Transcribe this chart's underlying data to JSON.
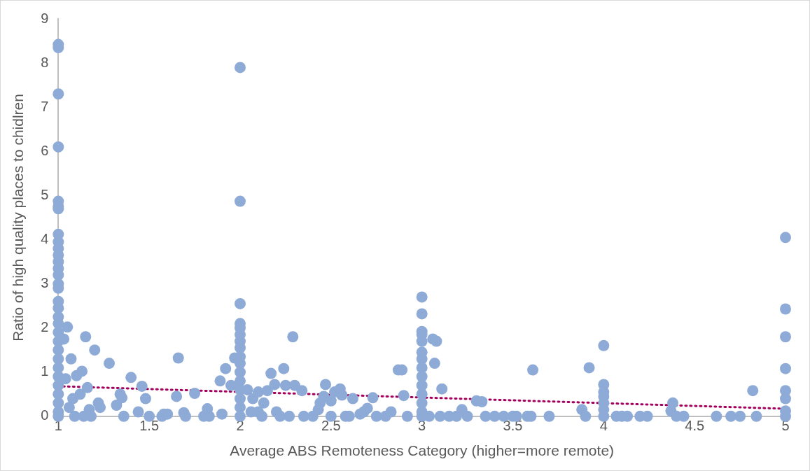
{
  "chart_data": {
    "type": "scatter",
    "xlabel": "Average ABS Remoteness Category (higher=more remote)",
    "ylabel": "Ratio of high quality places to chidlren",
    "xlim": [
      1,
      5
    ],
    "xticks": [
      1,
      1.5,
      2,
      2.5,
      3,
      3.5,
      4,
      4.5,
      5
    ],
    "ylim": [
      0,
      9
    ],
    "yticks": [
      0,
      1,
      2,
      3,
      4,
      5,
      6,
      7,
      8,
      9
    ],
    "grid": false,
    "legend": false,
    "marker": "circle",
    "series": [
      {
        "type": "scatter",
        "color": "#8eaad6",
        "x": [
          1,
          1,
          1,
          1,
          1,
          1,
          1,
          1,
          1,
          1,
          1,
          1,
          1,
          1,
          1,
          1,
          1,
          1,
          1,
          1,
          1,
          1,
          1,
          1,
          1,
          1,
          1,
          1,
          1,
          1,
          1,
          1.05,
          1.03,
          1.07,
          1.15,
          1.2,
          1.28,
          1.13,
          1.1,
          1.04,
          1.4,
          1.46,
          1.34,
          1.35,
          1.32,
          1.22,
          1.23,
          1.16,
          1.17,
          1.18,
          1.08,
          1.12,
          1.06,
          1.09,
          1.14,
          1.36,
          1.44,
          1.48,
          1.5,
          1.57,
          1.58,
          1.6,
          1.66,
          1.69,
          1.7,
          1.65,
          1.75,
          1.8,
          1.82,
          1.83,
          1.89,
          1.92,
          1.9,
          1.95,
          1.97,
          2,
          2,
          2,
          2,
          2,
          2,
          2,
          2,
          2,
          2,
          2,
          2,
          2,
          2,
          2,
          2,
          2.04,
          2.07,
          2.1,
          2.13,
          2.15,
          2.17,
          2.19,
          2.24,
          2.25,
          2.29,
          2.3,
          2.34,
          2.06,
          2.1,
          2.2,
          2.12,
          2.22,
          2.27,
          2.35,
          2.4,
          2.43,
          2.44,
          2.47,
          2.46,
          2.5,
          2.52,
          2.55,
          2.56,
          2.5,
          2.58,
          2.6,
          2.62,
          2.66,
          2.68,
          2.7,
          2.73,
          2.75,
          2.8,
          2.83,
          2.87,
          2.89,
          2.92,
          2.9,
          3,
          3,
          3,
          3,
          3,
          3,
          3,
          3,
          3,
          3,
          3,
          3,
          3,
          3,
          3.06,
          3.08,
          3.07,
          3.11,
          3.04,
          3.1,
          3.15,
          3.19,
          3.22,
          3.25,
          3.3,
          3.33,
          3.35,
          3.4,
          3.45,
          3.5,
          3.52,
          3.58,
          3.61,
          3.6,
          3.7,
          3.88,
          3.9,
          3.92,
          4,
          4,
          4,
          4,
          4,
          4,
          4,
          4.07,
          4.1,
          4.13,
          4.2,
          4.24,
          4.38,
          4.37,
          4.4,
          4.44,
          4.62,
          4.7,
          4.75,
          4.82,
          4.84,
          5,
          5,
          5,
          5,
          5,
          5,
          5,
          5
        ],
        "values": [
          8.42,
          8.35,
          7.3,
          6.1,
          4.87,
          4.75,
          4.7,
          4.12,
          3.95,
          3.8,
          3.65,
          3.5,
          3.35,
          3.2,
          3,
          2.9,
          2.6,
          2.45,
          2.25,
          2.1,
          1.9,
          1.7,
          1.5,
          1.3,
          1.1,
          0.9,
          0.7,
          0.5,
          0.3,
          0.1,
          0,
          2.02,
          1.75,
          1.3,
          1.8,
          1.5,
          1.2,
          1.02,
          0.92,
          0.85,
          0.88,
          0.68,
          0.5,
          0.42,
          0.25,
          0.3,
          0.2,
          0.65,
          0.15,
          0,
          0.4,
          0.5,
          0.2,
          0,
          0,
          0,
          0.1,
          0.4,
          0,
          0,
          0.05,
          0.05,
          1.32,
          0.08,
          0,
          0.45,
          0.52,
          0,
          0.17,
          0,
          0.8,
          1.08,
          0.05,
          0.7,
          1.32,
          7.9,
          4.87,
          2.55,
          2.1,
          2,
          1.85,
          1.7,
          1.55,
          1.35,
          1.2,
          1,
          0.8,
          0.6,
          0.4,
          0.2,
          0,
          0.6,
          0.4,
          0.55,
          0.3,
          0.58,
          0.97,
          0.72,
          1.08,
          0.7,
          1.8,
          0.7,
          0.58,
          0.1,
          0.1,
          0.1,
          0,
          0,
          0,
          0,
          0,
          0.15,
          0.3,
          0.72,
          0.45,
          0.35,
          0.55,
          0.62,
          0.48,
          0,
          0,
          0,
          0.4,
          0.05,
          0.1,
          0.18,
          0.42,
          0,
          0,
          0.1,
          1.05,
          1.05,
          0,
          0.47,
          2.7,
          2.32,
          1.92,
          1.85,
          1.7,
          1.45,
          1.3,
          1.1,
          0.9,
          0.7,
          0.5,
          0.3,
          0.1,
          0,
          1.75,
          1.7,
          1.2,
          0.62,
          0,
          0,
          0,
          0,
          0.15,
          0,
          0.35,
          0.33,
          0,
          0,
          0,
          0,
          0,
          0,
          1.05,
          0,
          0,
          0.15,
          0,
          1.1,
          1.6,
          0.72,
          0.55,
          0.45,
          0.3,
          0.15,
          0,
          0,
          0,
          0,
          0,
          0,
          0.3,
          0.12,
          0,
          0,
          0,
          0,
          0,
          0.58,
          0,
          4.05,
          2.43,
          1.8,
          1.08,
          0.58,
          0.4,
          0.12,
          0
        ]
      },
      {
        "type": "line",
        "color": "#a3005e",
        "x": [
          1,
          5
        ],
        "values": [
          0.68,
          0.17
        ],
        "line_style": "dotted",
        "marker": "none"
      }
    ]
  }
}
